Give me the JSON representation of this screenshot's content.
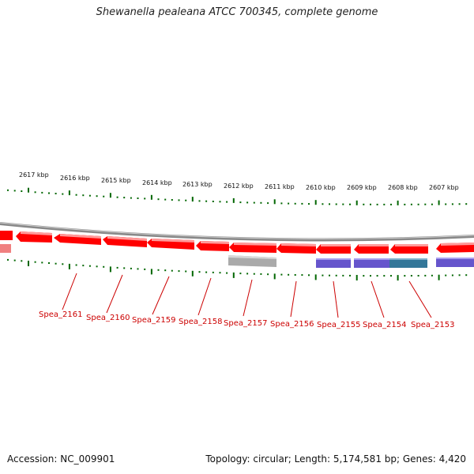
{
  "title": "Shewanella pealeana ATCC 700345, complete genome",
  "footer": {
    "accession": "Accession: NC_009901",
    "summary": "Topology: circular; Length: 5,174,581 bp; Genes: 4,420"
  },
  "outer_scale": [
    {
      "label": "2617 kbp"
    },
    {
      "label": "2616 kbp"
    },
    {
      "label": "2615 kbp"
    },
    {
      "label": "2614 kbp"
    },
    {
      "label": "2613 kbp"
    },
    {
      "label": "2612 kbp"
    },
    {
      "label": "2611 kbp"
    },
    {
      "label": "2610 kbp"
    },
    {
      "label": "2609 kbp"
    },
    {
      "label": "2608 kbp"
    },
    {
      "label": "2607 kbp"
    }
  ],
  "gene_labels": [
    "Spea_2161",
    "Spea_2160",
    "Spea_2159",
    "Spea_2158",
    "Spea_2157",
    "Spea_2156",
    "Spea_2155",
    "Spea_2154",
    "Spea_2153"
  ],
  "colors": {
    "gene_red": "#ff0000",
    "gene_gray": "#aaaaaa",
    "gene_purple": "#6655cc",
    "gene_teal": "#337799",
    "tick_green": "#006600",
    "backbone": "#888888",
    "label_red": "#cc0000"
  }
}
